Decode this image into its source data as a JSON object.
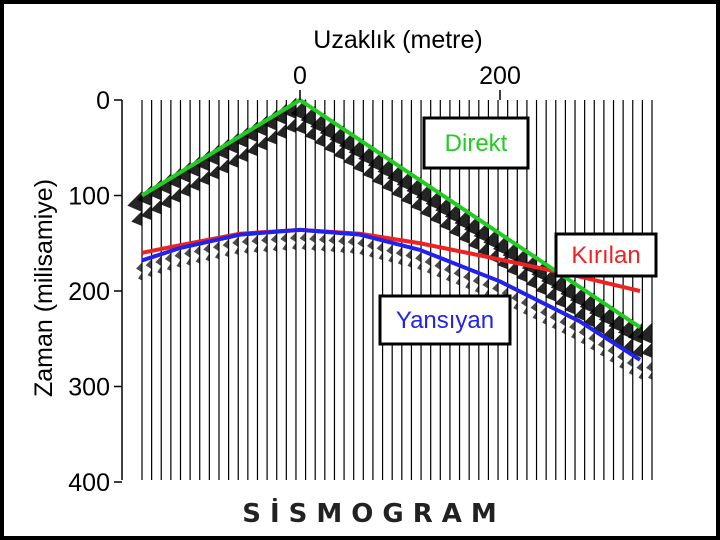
{
  "figure": {
    "x_title": "Uzaklık (metre)",
    "y_title": "Zaman (milisamiye)",
    "caption": "SİSMOGRAM",
    "x_ticks": [
      {
        "label": "0",
        "value": 0
      },
      {
        "label": "200",
        "value": 200
      }
    ],
    "y_ticks": [
      {
        "label": "0",
        "value": 0
      },
      {
        "label": "100",
        "value": 100
      },
      {
        "label": "200",
        "value": 200
      },
      {
        "label": "300",
        "value": 300
      },
      {
        "label": "400",
        "value": 400
      }
    ],
    "trace_count": 54,
    "x_range": [
      -160,
      350
    ],
    "y_range": [
      0,
      400
    ]
  },
  "events": {
    "direct": {
      "label": "Direkt",
      "color": "#22cc22",
      "points": [
        [
          -158,
          100
        ],
        [
          0,
          0
        ],
        [
          340,
          238
        ]
      ]
    },
    "refracted": {
      "label": "Kırılan",
      "color": "#ee2222",
      "points": [
        [
          -158,
          160
        ],
        [
          -120,
          152
        ],
        [
          -60,
          140
        ],
        [
          0,
          136
        ],
        [
          60,
          140
        ],
        [
          120,
          150
        ],
        [
          200,
          167
        ],
        [
          280,
          185
        ],
        [
          340,
          200
        ]
      ]
    },
    "reflected": {
      "label": "Yansıyan",
      "color": "#2222ee",
      "points": [
        [
          -158,
          168
        ],
        [
          -120,
          155
        ],
        [
          -60,
          141
        ],
        [
          0,
          136
        ],
        [
          60,
          141
        ],
        [
          120,
          157
        ],
        [
          200,
          190
        ],
        [
          280,
          232
        ],
        [
          340,
          272
        ]
      ]
    }
  }
}
